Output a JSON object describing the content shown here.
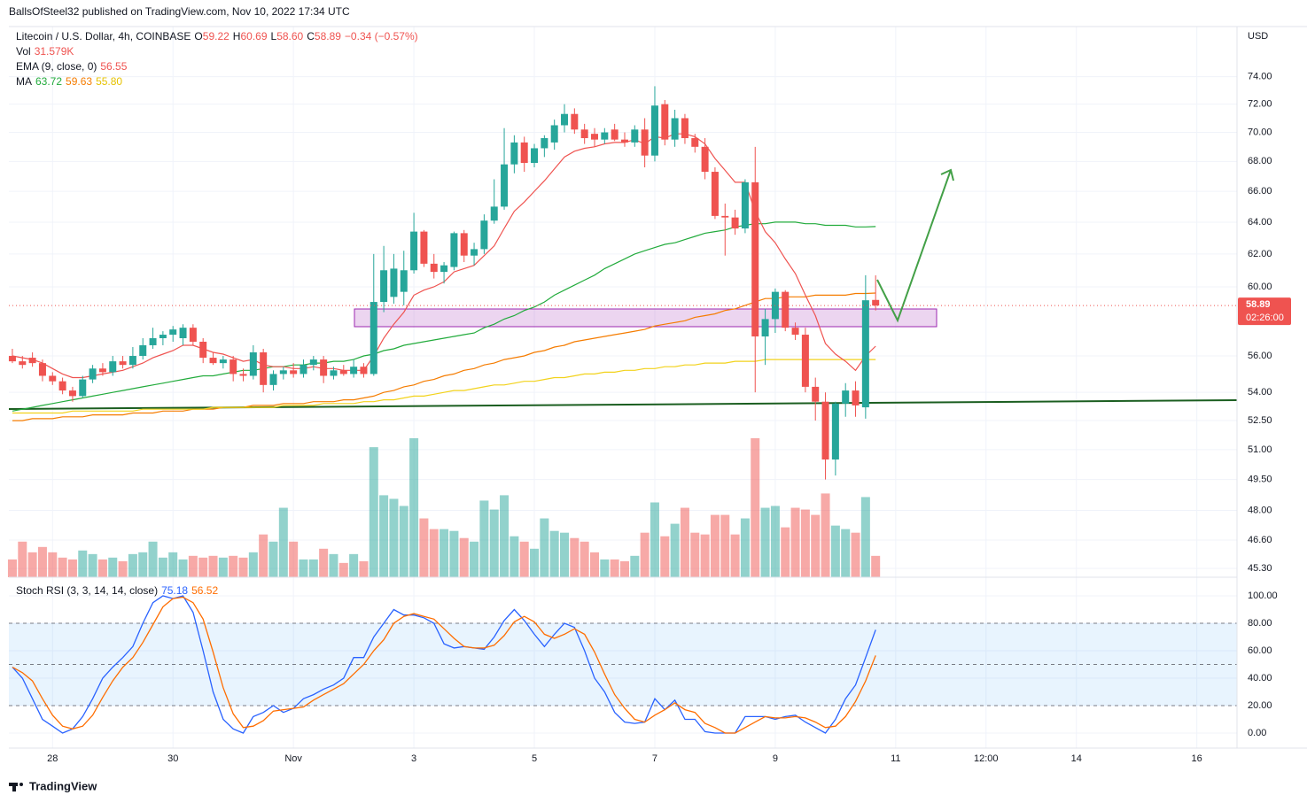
{
  "header": {
    "publisher": "BallsOfSteel32 published on TradingView.com, Nov 10, 2022 17:34 UTC",
    "footer": "TradingView"
  },
  "chart_data": {
    "type": "candlestick",
    "title": "Litecoin / U.S. Dollar, 4h, COINBASE",
    "currency": "USD",
    "legend": {
      "ohlc": [
        {
          "label": "O",
          "value": "59.22"
        },
        {
          "label": "H",
          "value": "60.69"
        },
        {
          "label": "L",
          "value": "58.60"
        },
        {
          "label": "C",
          "value": "58.89"
        }
      ],
      "change": "−0.34 (−0.57%)",
      "vol_label": "Vol",
      "vol_value": "31.579K"
    },
    "price_label": "58.89",
    "countdown": "02:26:00",
    "up_color": "#26a69a",
    "down_color": "#ef5350",
    "log_scale": true,
    "grid": true,
    "xlim": [
      -0.35,
      122
    ],
    "xticks": [
      {
        "value": 4,
        "label": "28"
      },
      {
        "value": 16,
        "label": "30"
      },
      {
        "value": 28,
        "label": "Nov"
      },
      {
        "value": 40,
        "label": "3"
      },
      {
        "value": 52,
        "label": "5"
      },
      {
        "value": 64,
        "label": "7"
      },
      {
        "value": 76,
        "label": "9"
      },
      {
        "value": 88,
        "label": "11"
      },
      {
        "value": 97,
        "label": "12:00"
      },
      {
        "value": 106,
        "label": "14"
      },
      {
        "value": 118,
        "label": "16"
      }
    ],
    "ylim": [
      44.9,
      77.8
    ],
    "yticks": [
      {
        "value": 74,
        "label": "74.00"
      },
      {
        "value": 72,
        "label": "72.00"
      },
      {
        "value": 70,
        "label": "70.00"
      },
      {
        "value": 68,
        "label": "68.00"
      },
      {
        "value": 66,
        "label": "66.00"
      },
      {
        "value": 64,
        "label": "64.00"
      },
      {
        "value": 62,
        "label": "62.00"
      },
      {
        "value": 60,
        "label": "60.00"
      },
      {
        "value": 56,
        "label": "56.00"
      },
      {
        "value": 54,
        "label": "54.00"
      },
      {
        "value": 52.5,
        "label": "52.50"
      },
      {
        "value": 51,
        "label": "51.00"
      },
      {
        "value": 49.5,
        "label": "49.50"
      },
      {
        "value": 48,
        "label": "48.00"
      },
      {
        "value": 46.6,
        "label": "46.60"
      },
      {
        "value": 45.3,
        "label": "45.30"
      }
    ],
    "open": [
      56.0,
      55.7,
      55.9,
      55.6,
      54.9,
      54.6,
      54.1,
      53.8,
      54.7,
      55.3,
      55.1,
      55.7,
      55.5,
      56.0,
      56.6,
      57.0,
      57.2,
      57.0,
      57.6,
      56.8,
      55.9,
      55.6,
      55.8,
      55.0,
      54.9,
      56.2,
      54.4,
      55.0,
      55.2,
      55.0,
      55.5,
      55.8,
      54.9,
      55.2,
      55.0,
      55.4,
      55.0,
      59.1,
      59.4,
      59.7,
      61.0,
      63.4,
      61.4,
      60.9,
      61.2,
      63.3,
      61.9,
      62.3,
      64.1,
      65.0,
      67.8,
      69.3,
      67.9,
      68.9,
      69.3,
      70.5,
      71.3,
      70.2,
      69.9,
      69.5,
      70.2,
      69.5,
      69.3,
      70.2,
      68.4,
      72.0,
      69.5,
      71.0,
      69.6,
      69.0,
      67.3,
      64.4,
      64.3,
      63.6,
      66.6,
      57.1,
      58.1,
      59.7,
      57.6,
      57.2,
      54.3,
      53.5,
      50.5,
      53.4,
      54.1,
      53.2,
      59.22
    ],
    "high": [
      56.4,
      56.0,
      56.2,
      55.8,
      55.1,
      54.8,
      54.3,
      54.9,
      55.5,
      55.6,
      56.0,
      56.0,
      56.5,
      57.0,
      57.6,
      57.4,
      57.7,
      57.8,
      57.8,
      57.0,
      56.2,
      56.0,
      56.0,
      55.3,
      56.6,
      56.4,
      55.2,
      55.4,
      55.6,
      55.8,
      56.0,
      56.0,
      55.4,
      55.5,
      55.8,
      55.6,
      62.0,
      62.5,
      62.0,
      62.2,
      64.6,
      63.5,
      62.0,
      61.5,
      63.4,
      63.5,
      62.7,
      64.5,
      66.8,
      70.3,
      69.8,
      69.7,
      69.2,
      69.8,
      70.9,
      72.0,
      71.7,
      70.6,
      70.3,
      70.3,
      70.6,
      70.0,
      70.5,
      71.0,
      73.3,
      72.3,
      71.6,
      71.3,
      69.9,
      69.6,
      67.6,
      65.2,
      64.8,
      66.8,
      69.0,
      58.7,
      59.9,
      59.8,
      57.9,
      57.6,
      54.8,
      54.0,
      53.5,
      54.5,
      54.6,
      60.7,
      60.69
    ],
    "low": [
      55.6,
      55.3,
      55.4,
      54.6,
      54.4,
      53.9,
      53.5,
      53.7,
      54.5,
      54.9,
      54.9,
      55.3,
      55.3,
      55.8,
      56.4,
      56.6,
      56.8,
      56.6,
      56.6,
      55.6,
      55.5,
      55.3,
      54.6,
      54.6,
      54.7,
      54.0,
      54.1,
      54.7,
      54.8,
      54.8,
      55.2,
      54.5,
      54.7,
      54.9,
      54.8,
      54.8,
      54.9,
      58.5,
      59.0,
      58.9,
      60.8,
      61.2,
      60.5,
      60.2,
      61.0,
      61.5,
      61.3,
      62.0,
      63.9,
      64.8,
      67.2,
      67.3,
      67.6,
      68.3,
      68.8,
      70.0,
      69.9,
      69.2,
      69.0,
      69.2,
      69.4,
      69.0,
      69.0,
      67.6,
      68.0,
      69.1,
      69.0,
      69.2,
      68.6,
      66.8,
      64.2,
      61.9,
      63.2,
      63.3,
      54.0,
      55.5,
      57.3,
      57.4,
      56.9,
      54.0,
      52.5,
      49.5,
      49.7,
      52.7,
      52.7,
      52.6,
      58.6
    ],
    "close": [
      55.7,
      55.5,
      55.6,
      54.9,
      54.6,
      54.1,
      53.8,
      54.7,
      55.3,
      55.1,
      55.7,
      55.5,
      56.0,
      56.6,
      57.0,
      57.2,
      57.5,
      57.6,
      56.8,
      55.9,
      55.6,
      55.8,
      55.0,
      54.9,
      56.2,
      54.4,
      55.0,
      55.2,
      55.0,
      55.5,
      55.8,
      54.9,
      55.2,
      55.0,
      55.4,
      55.0,
      59.1,
      61.0,
      61.1,
      61.0,
      63.4,
      61.4,
      60.9,
      61.3,
      63.3,
      61.9,
      62.3,
      64.1,
      65.0,
      67.8,
      69.3,
      67.9,
      68.9,
      69.6,
      70.5,
      71.3,
      70.2,
      69.6,
      69.5,
      70.0,
      69.5,
      69.3,
      70.2,
      68.4,
      71.9,
      69.5,
      71.0,
      69.6,
      69.0,
      67.3,
      64.4,
      64.3,
      63.6,
      66.6,
      57.1,
      58.1,
      59.7,
      57.6,
      57.2,
      54.3,
      53.5,
      50.5,
      53.4,
      54.1,
      53.3,
      59.2,
      58.89
    ],
    "volume": [
      26300,
      52600,
      36800,
      44700,
      36800,
      29000,
      26300,
      39500,
      34200,
      26300,
      29000,
      23700,
      34200,
      36800,
      52600,
      29000,
      36800,
      26300,
      31600,
      29000,
      31600,
      29000,
      31600,
      29000,
      36800,
      63200,
      52600,
      102600,
      52600,
      26300,
      26300,
      42100,
      34200,
      21100,
      34200,
      23700,
      192100,
      121100,
      115800,
      105300,
      205300,
      86900,
      71100,
      71100,
      68400,
      57900,
      52600,
      113200,
      100000,
      121100,
      60500,
      52600,
      42100,
      86900,
      68400,
      65800,
      57900,
      52600,
      36800,
      26300,
      26300,
      23700,
      31600,
      65800,
      110500,
      60500,
      79000,
      102600,
      65800,
      63200,
      92100,
      92100,
      63200,
      86900,
      205300,
      102600,
      105300,
      73700,
      102600,
      100000,
      92100,
      123700,
      76300,
      71100,
      65800,
      118400,
      31579
    ],
    "ema": {
      "name": "EMA (9, close, 0)",
      "label": "56.55",
      "color": "#ef5350",
      "values": [
        56.0,
        55.9,
        55.8,
        55.6,
        55.3,
        55.0,
        54.8,
        54.8,
        54.9,
        55.0,
        55.1,
        55.2,
        55.4,
        55.6,
        55.9,
        56.1,
        56.3,
        56.6,
        56.6,
        56.4,
        56.2,
        56.1,
        55.9,
        55.7,
        55.8,
        55.5,
        55.4,
        55.4,
        55.3,
        55.3,
        55.4,
        55.3,
        55.3,
        55.2,
        55.2,
        55.2,
        56.0,
        57.0,
        57.8,
        58.5,
        59.5,
        59.8,
        60.0,
        60.3,
        60.9,
        61.1,
        61.3,
        61.9,
        62.5,
        63.6,
        64.7,
        65.3,
        66.0,
        66.7,
        67.5,
        68.3,
        68.7,
        68.9,
        69.0,
        69.2,
        69.3,
        69.3,
        69.5,
        69.2,
        69.7,
        69.6,
        69.9,
        69.9,
        69.7,
        69.2,
        68.2,
        67.4,
        66.6,
        66.6,
        64.7,
        63.4,
        62.7,
        61.7,
        60.8,
        59.5,
        58.3,
        56.7,
        56.1,
        55.7,
        55.2,
        56.0,
        56.55
      ]
    },
    "ma_name": "MA",
    "ma": [
      {
        "label": "63.72",
        "color": "#22ab3c",
        "values": [
          53.0,
          53.1,
          53.2,
          53.3,
          53.4,
          53.5,
          53.6,
          53.7,
          53.8,
          53.9,
          54.0,
          54.1,
          54.2,
          54.3,
          54.4,
          54.5,
          54.6,
          54.7,
          54.8,
          54.9,
          54.9,
          55.0,
          55.1,
          55.2,
          55.2,
          55.3,
          55.4,
          55.4,
          55.5,
          55.5,
          55.6,
          55.6,
          55.7,
          55.7,
          55.8,
          56.0,
          56.1,
          56.3,
          56.4,
          56.6,
          56.7,
          56.8,
          56.9,
          57.0,
          57.1,
          57.2,
          57.3,
          57.6,
          57.8,
          58.1,
          58.3,
          58.6,
          58.8,
          59.1,
          59.5,
          59.8,
          60.1,
          60.4,
          60.7,
          61.1,
          61.4,
          61.7,
          62.0,
          62.2,
          62.4,
          62.6,
          62.7,
          62.9,
          63.1,
          63.3,
          63.4,
          63.5,
          63.7,
          63.8,
          63.9,
          63.9,
          64.0,
          64.0,
          64.0,
          63.9,
          63.9,
          63.8,
          63.8,
          63.8,
          63.7,
          63.7,
          63.72
        ]
      },
      {
        "label": "59.63",
        "color": "#f57c00",
        "values": [
          52.5,
          52.5,
          52.6,
          52.6,
          52.6,
          52.7,
          52.7,
          52.7,
          52.8,
          52.8,
          52.8,
          52.8,
          52.9,
          52.9,
          52.9,
          53.0,
          53.0,
          53.0,
          53.1,
          53.1,
          53.1,
          53.2,
          53.2,
          53.2,
          53.3,
          53.3,
          53.3,
          53.4,
          53.4,
          53.4,
          53.5,
          53.5,
          53.5,
          53.6,
          53.6,
          53.7,
          53.8,
          54.0,
          54.1,
          54.3,
          54.4,
          54.6,
          54.7,
          54.9,
          55.0,
          55.2,
          55.3,
          55.5,
          55.6,
          55.8,
          55.9,
          56.0,
          56.2,
          56.3,
          56.5,
          56.6,
          56.8,
          56.9,
          57.0,
          57.1,
          57.2,
          57.3,
          57.4,
          57.5,
          57.7,
          57.8,
          57.9,
          58.0,
          58.2,
          58.3,
          58.4,
          58.6,
          58.7,
          58.9,
          59.1,
          59.3,
          59.3,
          59.4,
          59.4,
          59.4,
          59.5,
          59.5,
          59.5,
          59.5,
          59.6,
          59.6,
          59.63
        ]
      },
      {
        "label": "55.80",
        "color": "#f2d21b",
        "values": [
          52.9,
          52.9,
          52.9,
          52.9,
          52.9,
          52.9,
          53.0,
          53.0,
          53.0,
          53.0,
          53.0,
          53.0,
          53.0,
          53.1,
          53.1,
          53.1,
          53.1,
          53.1,
          53.1,
          53.1,
          53.2,
          53.2,
          53.2,
          53.2,
          53.2,
          53.2,
          53.2,
          53.3,
          53.3,
          53.3,
          53.3,
          53.4,
          53.4,
          53.4,
          53.4,
          53.5,
          53.5,
          53.6,
          53.6,
          53.7,
          53.8,
          53.8,
          53.9,
          54.0,
          54.1,
          54.1,
          54.2,
          54.3,
          54.4,
          54.4,
          54.5,
          54.6,
          54.6,
          54.7,
          54.8,
          54.8,
          54.9,
          55.0,
          55.0,
          55.1,
          55.1,
          55.2,
          55.2,
          55.3,
          55.3,
          55.4,
          55.4,
          55.5,
          55.5,
          55.6,
          55.6,
          55.6,
          55.7,
          55.7,
          55.7,
          55.8,
          55.8,
          55.8,
          55.8,
          55.8,
          55.8,
          55.8,
          55.8,
          55.8,
          55.8,
          55.8,
          55.8
        ]
      }
    ],
    "stoch": {
      "name": "Stoch RSI (3, 3, 14, 14, close)",
      "ylim": [
        -11,
        111.6
      ],
      "yticks": [
        {
          "value": 100,
          "label": "100.00"
        },
        {
          "value": 80,
          "label": "80.00"
        },
        {
          "value": 60,
          "label": "60.00"
        },
        {
          "value": 40,
          "label": "40.00"
        },
        {
          "value": 20,
          "label": "20.00"
        },
        {
          "value": 0,
          "label": "0.00"
        }
      ],
      "levels": [
        80,
        50,
        20
      ],
      "series": [
        {
          "label": "75.18",
          "color": "#2962ff",
          "values": [
            48,
            40,
            25,
            10,
            5,
            0,
            3,
            12,
            25,
            40,
            48,
            55,
            63,
            80,
            95,
            100,
            98,
            100,
            88,
            60,
            30,
            10,
            3,
            0,
            12,
            15,
            20,
            15,
            18,
            25,
            28,
            32,
            35,
            40,
            55,
            55,
            70,
            80,
            90,
            86,
            86,
            84,
            80,
            65,
            62,
            63,
            62,
            61,
            70,
            82,
            90,
            82,
            72,
            63,
            72,
            80,
            77,
            60,
            40,
            30,
            15,
            8,
            7,
            8,
            25,
            17,
            24,
            10,
            10,
            1,
            0,
            0,
            0,
            12,
            12,
            12,
            10,
            12,
            13,
            8,
            4,
            0,
            10,
            25,
            35,
            55,
            75.18
          ]
        },
        {
          "label": "56.52",
          "color": "#ff6d00",
          "values": [
            48,
            44,
            38,
            25,
            13,
            5,
            3,
            5,
            13,
            26,
            38,
            48,
            55,
            66,
            79,
            92,
            98,
            99,
            95,
            83,
            59,
            33,
            14,
            4,
            5,
            9,
            16,
            17,
            18,
            19,
            24,
            28,
            32,
            36,
            43,
            50,
            60,
            68,
            80,
            85,
            87,
            85,
            83,
            76,
            69,
            63,
            62,
            62,
            64,
            71,
            81,
            85,
            81,
            72,
            69,
            72,
            76,
            72,
            59,
            43,
            28,
            18,
            10,
            8,
            13,
            17,
            22,
            17,
            15,
            7,
            4,
            0,
            0,
            4,
            8,
            12,
            11,
            11,
            12,
            11,
            8,
            4,
            5,
            12,
            23,
            38,
            56.52
          ]
        }
      ]
    }
  }
}
